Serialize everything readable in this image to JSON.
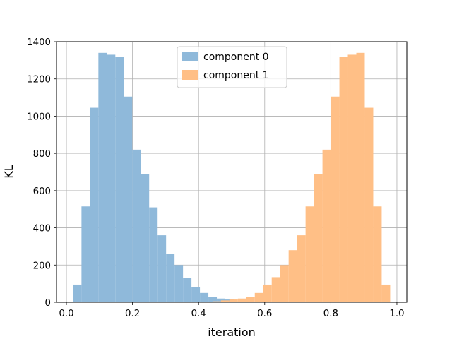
{
  "chart_data": {
    "type": "bar",
    "subtype": "histogram",
    "title": "",
    "xlabel": "iteration",
    "ylabel": "KL",
    "xlim": [
      -0.03,
      1.03
    ],
    "ylim": [
      0,
      1400
    ],
    "xticks": [
      0.0,
      0.2,
      0.4,
      0.6,
      0.8,
      1.0
    ],
    "xtick_labels": [
      "0.0",
      "0.2",
      "0.4",
      "0.6",
      "0.8",
      "1.0"
    ],
    "yticks": [
      0,
      200,
      400,
      600,
      800,
      1000,
      1200,
      1400
    ],
    "ytick_labels": [
      "0",
      "200",
      "400",
      "600",
      "800",
      "1000",
      "1200",
      "1400"
    ],
    "grid": true,
    "legend_position": "top-center",
    "series": [
      {
        "name": "component 0",
        "color": "#8fb9da",
        "bin_start": 0.02,
        "bin_width": 0.0256,
        "values": [
          95,
          515,
          1045,
          1340,
          1330,
          1320,
          1105,
          820,
          690,
          510,
          360,
          260,
          200,
          130,
          80,
          50,
          30,
          20,
          15,
          5,
          2
        ]
      },
      {
        "name": "component 1",
        "color": "#ffbf86",
        "bin_start": 0.442,
        "bin_width": 0.0256,
        "values": [
          5,
          10,
          15,
          20,
          30,
          50,
          95,
          135,
          200,
          280,
          360,
          515,
          690,
          820,
          1105,
          1320,
          1330,
          1340,
          1045,
          515,
          95
        ]
      }
    ]
  }
}
